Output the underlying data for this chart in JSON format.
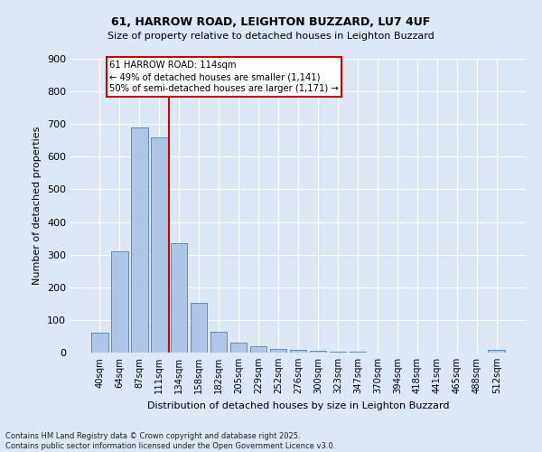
{
  "title1": "61, HARROW ROAD, LEIGHTON BUZZARD, LU7 4UF",
  "title2": "Size of property relative to detached houses in Leighton Buzzard",
  "xlabel": "Distribution of detached houses by size in Leighton Buzzard",
  "ylabel": "Number of detached properties",
  "bar_labels": [
    "40sqm",
    "64sqm",
    "87sqm",
    "111sqm",
    "134sqm",
    "158sqm",
    "182sqm",
    "205sqm",
    "229sqm",
    "252sqm",
    "276sqm",
    "300sqm",
    "323sqm",
    "347sqm",
    "370sqm",
    "394sqm",
    "418sqm",
    "441sqm",
    "465sqm",
    "488sqm",
    "512sqm"
  ],
  "bar_values": [
    60,
    310,
    690,
    660,
    335,
    152,
    65,
    30,
    20,
    12,
    8,
    5,
    3,
    2,
    1,
    1,
    0,
    0,
    0,
    0,
    8
  ],
  "bar_color": "#aec6e8",
  "bar_edge_color": "#5b8db8",
  "vline_x": 3.5,
  "vline_color": "#cc0000",
  "annotation_text": "61 HARROW ROAD: 114sqm\n← 49% of detached houses are smaller (1,141)\n50% of semi-detached houses are larger (1,171) →",
  "annotation_box_color": "#ffffff",
  "annotation_box_edge_color": "#cc0000",
  "ylim": [
    0,
    900
  ],
  "yticks": [
    0,
    100,
    200,
    300,
    400,
    500,
    600,
    700,
    800,
    900
  ],
  "background_color": "#dce8f5",
  "grid_color": "#ffffff",
  "footer": "Contains HM Land Registry data © Crown copyright and database right 2025.\nContains public sector information licensed under the Open Government Licence v3.0."
}
